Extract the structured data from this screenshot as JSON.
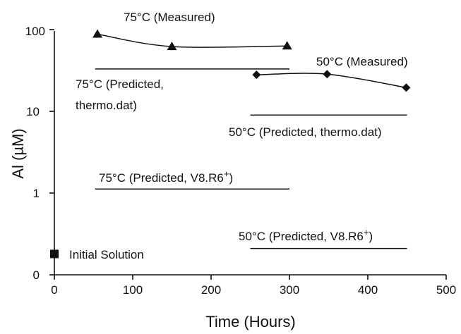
{
  "chart_data": {
    "type": "line",
    "xlabel": "Time (Hours)",
    "ylabel": "Al (µM)",
    "xlim": [
      0,
      500
    ],
    "ylim_display": [
      0,
      100
    ],
    "y_scale": "log (bottom tick labeled 0)",
    "x_ticks": [
      "0",
      "100",
      "200",
      "300",
      "400",
      "500"
    ],
    "y_ticks": [
      "0",
      "1",
      "10",
      "100"
    ],
    "grid": false,
    "series": [
      {
        "name": "75°C (Measured)",
        "marker": "triangle",
        "x": [
          55,
          150,
          297
        ],
        "y": [
          88,
          62,
          63
        ]
      },
      {
        "name": "50°C (Measured)",
        "marker": "diamond",
        "x": [
          258,
          348,
          449
        ],
        "y": [
          28,
          28.5,
          19.5
        ]
      },
      {
        "name": "Initial Solution",
        "marker": "square",
        "x": [
          0
        ],
        "y": [
          0.18
        ]
      }
    ],
    "reference_lines": [
      {
        "label": "75°C (Predicted, thermo.dat)",
        "x": [
          52,
          300
        ],
        "y": 33
      },
      {
        "label": "50°C (Predicted, thermo.dat)",
        "x": [
          250,
          450
        ],
        "y": 9
      },
      {
        "label": "75°C (Predicted, V8.R6",
        "sup": "+",
        "label_end": ")",
        "x": [
          52,
          300
        ],
        "y": 1.12
      },
      {
        "label": "50°C (Predicted, V8.R6",
        "sup": "+",
        "label_end": ")",
        "x": [
          250,
          450
        ],
        "y": 0.21
      }
    ],
    "annotations": {
      "measured_75": "75°C (Measured)",
      "measured_50": "50°C (Measured)",
      "pred_75_thermo_line1": "75°C (Predicted,",
      "pred_75_thermo_line2": "thermo.dat)",
      "pred_50_thermo": "50°C (Predicted, thermo.dat)",
      "pred_75_v8": "75°C (Predicted, V8.R6",
      "pred_50_v8": "50°C (Predicted, V8.R6",
      "sup_plus": "+",
      "close_paren": ")",
      "initial_solution": "Initial Solution"
    },
    "colors": {
      "ink": "#111111"
    }
  }
}
